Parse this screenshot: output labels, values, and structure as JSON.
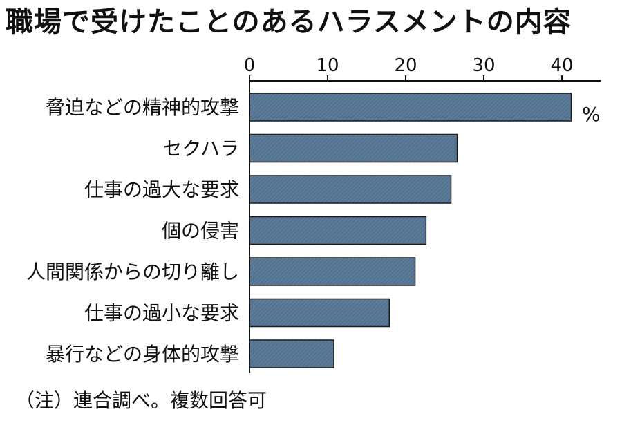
{
  "chart_data": {
    "type": "bar",
    "orientation": "horizontal",
    "title": "職場で受けたことのあるハラスメントの内容",
    "unit": "%",
    "categories": [
      "脅迫などの精神的攻撃",
      "セクハラ",
      "仕事の過大な要求",
      "個の侵害",
      "人間関係からの切り離し",
      "仕事の過小な要求",
      "暴行などの身体的攻撃"
    ],
    "values": [
      41.2,
      26.6,
      25.8,
      22.6,
      21.2,
      17.9,
      10.8
    ],
    "xlim": [
      0,
      45
    ],
    "xticks": [
      0,
      10,
      20,
      30,
      40
    ],
    "axis_position": "top",
    "grid": false,
    "bar_color": "#5a7a98",
    "note": "（注）連合調べ。複数回答可"
  }
}
